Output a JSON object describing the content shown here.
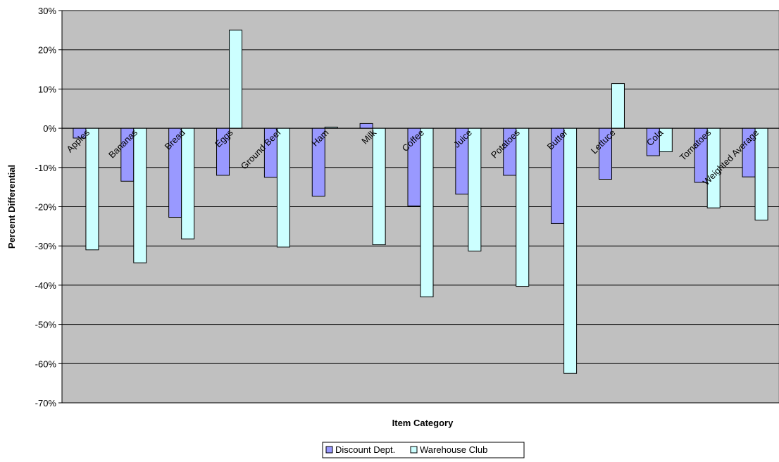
{
  "chart_data": {
    "type": "bar",
    "xlabel": "Item Category",
    "ylabel": "Percent Differential",
    "ylim": [
      -70,
      30
    ],
    "yticks": [
      "30%",
      "20%",
      "10%",
      "0%",
      "-10%",
      "-20%",
      "-30%",
      "-40%",
      "-50%",
      "-60%",
      "-70%"
    ],
    "categories": [
      "Apples",
      "Bananas",
      "Bread",
      "Eggs",
      "Ground Beef",
      "Ham",
      "Milk",
      "Coffee",
      "Juice",
      "Potatoes",
      "Butter",
      "Lettuce",
      "Cola",
      "Tomatoes",
      "Weighted Average"
    ],
    "series": [
      {
        "name": "Discount Dept.",
        "color": "#9999ff",
        "values": [
          -2.5,
          -13.5,
          -22.7,
          -12,
          -12.5,
          -17.3,
          1.2,
          -19.8,
          -16.8,
          -12,
          -24.3,
          -13,
          -7,
          -13.8,
          -12.4
        ]
      },
      {
        "name": "Warehouse Club",
        "color": "#ccffff",
        "values": [
          -31,
          -34.3,
          -28.2,
          25,
          -30.3,
          0.3,
          -29.7,
          -43,
          -31.3,
          -40.3,
          -62.5,
          11.4,
          -6,
          -20.3,
          -23.4
        ]
      }
    ],
    "plot_background": "#c0c0c0",
    "grid": true,
    "legend_position": "bottom"
  }
}
